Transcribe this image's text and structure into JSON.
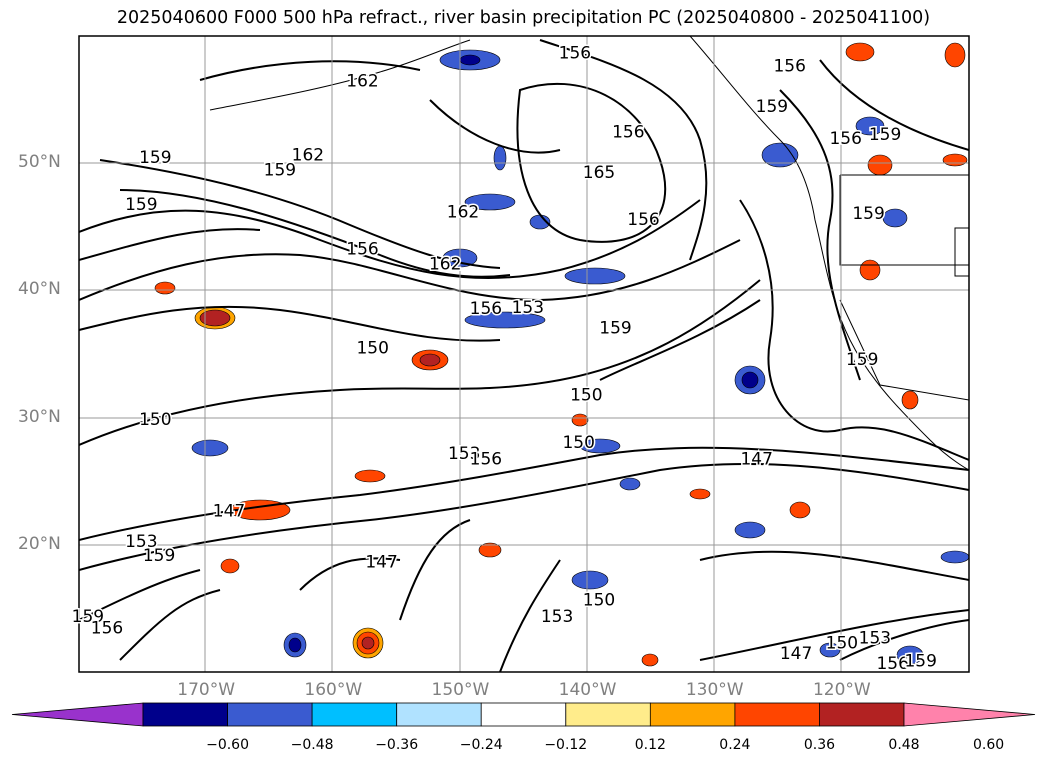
{
  "title": "2025040600 F000 500 hPa refract., river basin precipitation PC (2025040800 - 2025041100)",
  "map": {
    "lat_labels": [
      {
        "text": "50°N",
        "lat": 50
      },
      {
        "text": "40°N",
        "lat": 40
      },
      {
        "text": "30°N",
        "lat": 30
      },
      {
        "text": "20°N",
        "lat": 20
      }
    ],
    "lon_labels": [
      {
        "text": "170°W",
        "lon": -170
      },
      {
        "text": "160°W",
        "lon": -160
      },
      {
        "text": "150°W",
        "lon": -150
      },
      {
        "text": "140°W",
        "lon": -140
      },
      {
        "text": "130°W",
        "lon": -130
      },
      {
        "text": "120°W",
        "lon": -120
      }
    ],
    "contour_labels": [
      {
        "text": "156",
        "lon": -141,
        "lat": 58.7
      },
      {
        "text": "162",
        "lon": -157.7,
        "lat": 56.5
      },
      {
        "text": "156",
        "lon": -124.1,
        "lat": 57.7
      },
      {
        "text": "159",
        "lon": -125.5,
        "lat": 54.5
      },
      {
        "text": "156",
        "lon": -136.8,
        "lat": 52.5
      },
      {
        "text": "156",
        "lon": -119.7,
        "lat": 52
      },
      {
        "text": "159",
        "lon": -116.6,
        "lat": 52.3
      },
      {
        "text": "159",
        "lon": -174,
        "lat": 50.5
      },
      {
        "text": "162",
        "lon": -162,
        "lat": 50.7
      },
      {
        "text": "159",
        "lon": -164.2,
        "lat": 49.5
      },
      {
        "text": "165",
        "lon": -139.1,
        "lat": 49.3
      },
      {
        "text": "159",
        "lon": -175.1,
        "lat": 46.8
      },
      {
        "text": "162",
        "lon": -149.8,
        "lat": 46.2
      },
      {
        "text": "156",
        "lon": -135.6,
        "lat": 45.6
      },
      {
        "text": "159",
        "lon": -117.9,
        "lat": 46.1
      },
      {
        "text": "156",
        "lon": -157.7,
        "lat": 43.3
      },
      {
        "text": "162",
        "lon": -151.2,
        "lat": 42.1
      },
      {
        "text": "156",
        "lon": -148,
        "lat": 38.6
      },
      {
        "text": "153",
        "lon": -144.7,
        "lat": 38.7
      },
      {
        "text": "159",
        "lon": -137.8,
        "lat": 37.1
      },
      {
        "text": "150",
        "lon": -156.9,
        "lat": 35.5
      },
      {
        "text": "159",
        "lon": -118.4,
        "lat": 34.6
      },
      {
        "text": "150",
        "lon": -140.1,
        "lat": 31.8
      },
      {
        "text": "150",
        "lon": -174,
        "lat": 29.9
      },
      {
        "text": "150",
        "lon": -140.7,
        "lat": 28.1
      },
      {
        "text": "153",
        "lon": -149.7,
        "lat": 27.2
      },
      {
        "text": "156",
        "lon": -148,
        "lat": 26.8
      },
      {
        "text": "147",
        "lon": -126.7,
        "lat": 26.8
      },
      {
        "text": "147",
        "lon": -168.2,
        "lat": 22.7
      },
      {
        "text": "153",
        "lon": -175.1,
        "lat": 20.3
      },
      {
        "text": "159",
        "lon": -173.7,
        "lat": 19.2
      },
      {
        "text": "147",
        "lon": -156.2,
        "lat": 18.7
      },
      {
        "text": "150",
        "lon": -139.1,
        "lat": 15.7
      },
      {
        "text": "153",
        "lon": -142.4,
        "lat": 14.4
      },
      {
        "text": "159",
        "lon": -179.3,
        "lat": 14.4
      },
      {
        "text": "156",
        "lon": -177.8,
        "lat": 13.5
      },
      {
        "text": "147",
        "lon": -123.6,
        "lat": 11.5
      },
      {
        "text": "150",
        "lon": -120,
        "lat": 12.3
      },
      {
        "text": "153",
        "lon": -117.4,
        "lat": 12.7
      },
      {
        "text": "156",
        "lon": -116,
        "lat": 10.7
      },
      {
        "text": "159",
        "lon": -113.8,
        "lat": 10.9
      }
    ]
  },
  "colorbar": {
    "colors": [
      "#9932cc",
      "#00008b",
      "#3a5bd0",
      "#00bfff",
      "#b0e2ff",
      "#ffffff",
      "#ffec8b",
      "#ffa500",
      "#ff4500",
      "#b22222",
      "#ff82ab"
    ],
    "tick_labels": [
      "−0.60",
      "−0.48",
      "−0.36",
      "−0.24",
      "−0.12",
      "0.12",
      "0.24",
      "0.36",
      "0.48",
      "0.60"
    ]
  }
}
